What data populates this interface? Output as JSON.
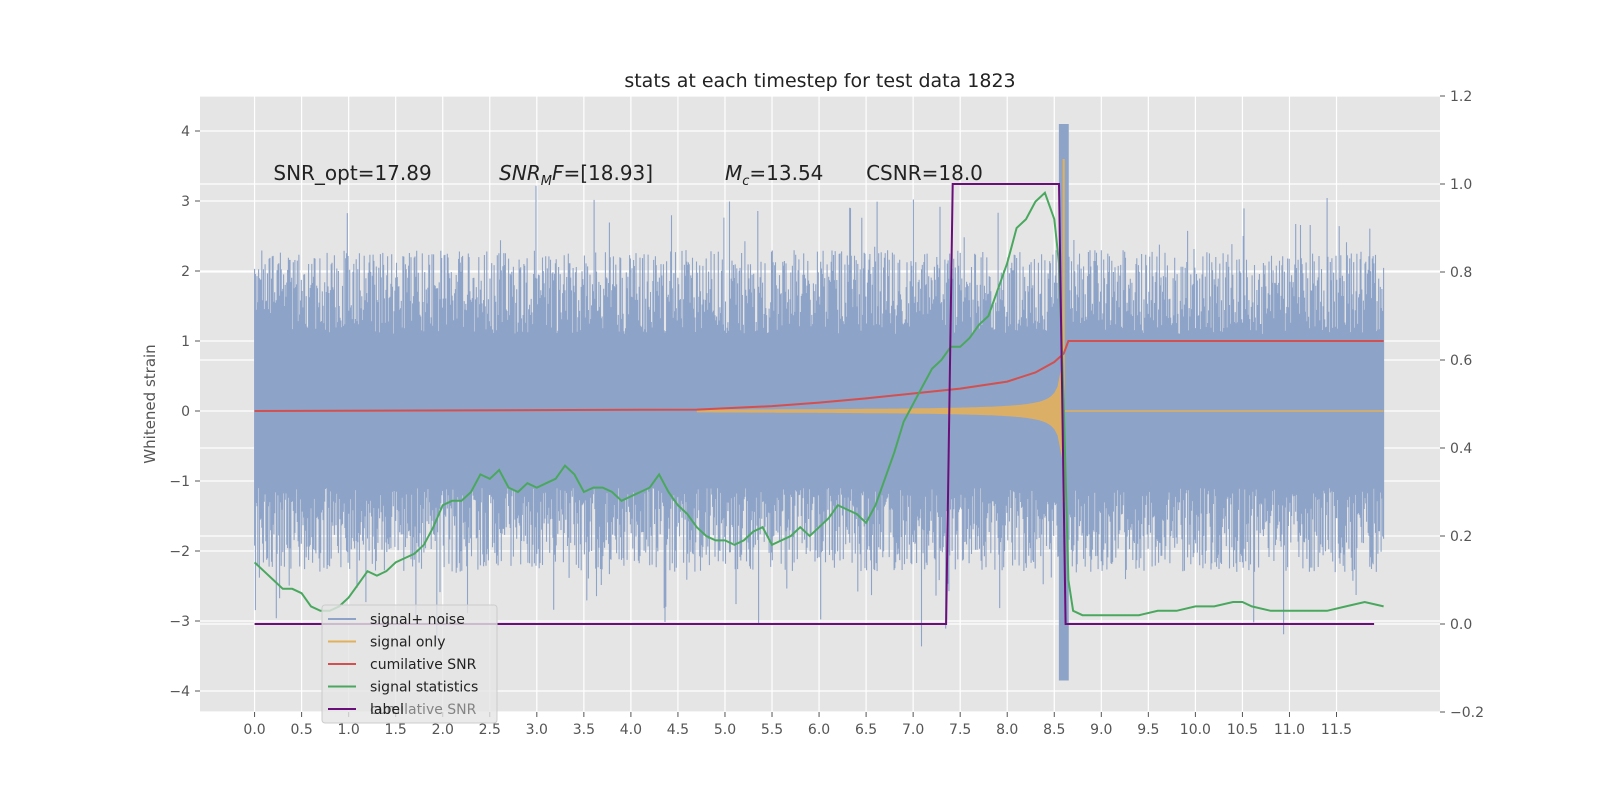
{
  "chart_data": {
    "type": "line",
    "title": "stats at each timestep for test data 1823",
    "ylabel": "Whitened strain",
    "xlabel": "",
    "xlim": [
      -0.58,
      12.6
    ],
    "ylim": [
      -4.3,
      4.5
    ],
    "y2lim": [
      -0.2,
      1.2
    ],
    "x_ticks": [
      "0.0",
      "0.5",
      "1.0",
      "1.5",
      "2.0",
      "2.5",
      "3.0",
      "3.5",
      "4.0",
      "4.5",
      "5.0",
      "5.5",
      "6.0",
      "6.5",
      "7.0",
      "7.5",
      "8.0",
      "8.5",
      "9.0",
      "9.5",
      "10.0",
      "10.5",
      "11.0",
      "11.5"
    ],
    "y_ticks": [
      4,
      3,
      2,
      1,
      0,
      -1,
      -2,
      -3,
      -4
    ],
    "y2_ticks": [
      1.2,
      1.0,
      0.8,
      0.6,
      0.4,
      0.2,
      0.0,
      -0.2
    ],
    "grid": true,
    "legend_position": "lower-left",
    "annotations": [
      {
        "text": "SNR_opt=17.89",
        "x": 0.2,
        "y": 3.3
      },
      {
        "text": "SNR_MF=[18.93]",
        "x": 2.6,
        "y": 3.3,
        "base": "SNR",
        "sub": "M",
        "tail": "F=[18.93]"
      },
      {
        "text": "M_c=13.54",
        "x": 5.0,
        "y": 3.3,
        "base": "M",
        "sub": "c",
        "tail": "=13.54"
      },
      {
        "text": "CSNR=18.0",
        "x": 6.5,
        "y": 3.3
      }
    ],
    "series": [
      {
        "name": "signal+ noise",
        "color": "#8ea3c8",
        "description_values": "noise band",
        "x_range": [
          0.0,
          12.0
        ],
        "band_typical": [
          -1.8,
          1.8
        ],
        "peaks_max": 4.1,
        "peaks_min": -3.85
      },
      {
        "name": "signal only",
        "color": "#e3b05a",
        "chirp_start": 4.7,
        "chirp_peak_time": 8.6,
        "chirp_peak_amp": 3.6
      },
      {
        "name": "cumilative SNR",
        "color": "#d2504f",
        "axis": "left",
        "x": [
          0.0,
          4.7,
          5.5,
          6.0,
          6.5,
          7.0,
          7.5,
          8.0,
          8.3,
          8.5,
          8.6,
          8.65,
          12.0
        ],
        "y": [
          0.0,
          0.02,
          0.07,
          0.12,
          0.18,
          0.25,
          0.32,
          0.42,
          0.55,
          0.7,
          0.82,
          1.0,
          1.0
        ]
      },
      {
        "name": "signal statistics",
        "color": "#4aa85e",
        "axis": "right",
        "x": [
          0.0,
          0.1,
          0.2,
          0.3,
          0.4,
          0.5,
          0.6,
          0.7,
          0.8,
          0.9,
          1.0,
          1.1,
          1.2,
          1.3,
          1.4,
          1.5,
          1.6,
          1.7,
          1.8,
          1.9,
          2.0,
          2.1,
          2.2,
          2.3,
          2.4,
          2.5,
          2.6,
          2.7,
          2.8,
          2.9,
          3.0,
          3.1,
          3.2,
          3.3,
          3.4,
          3.5,
          3.6,
          3.7,
          3.8,
          3.9,
          4.0,
          4.1,
          4.2,
          4.3,
          4.4,
          4.5,
          4.6,
          4.7,
          4.8,
          4.9,
          5.0,
          5.1,
          5.2,
          5.3,
          5.4,
          5.5,
          5.6,
          5.7,
          5.8,
          5.9,
          6.0,
          6.1,
          6.2,
          6.3,
          6.4,
          6.5,
          6.6,
          6.7,
          6.8,
          6.9,
          7.0,
          7.1,
          7.2,
          7.3,
          7.4,
          7.5,
          7.6,
          7.7,
          7.8,
          7.9,
          8.0,
          8.1,
          8.2,
          8.3,
          8.4,
          8.5,
          8.55,
          8.6,
          8.65,
          8.7,
          8.8,
          9.0,
          9.2,
          9.4,
          9.6,
          9.8,
          10.0,
          10.2,
          10.4,
          10.5,
          10.6,
          10.8,
          11.0,
          11.2,
          11.4,
          11.6,
          11.8,
          12.0
        ],
        "y": [
          0.14,
          0.12,
          0.1,
          0.08,
          0.08,
          0.07,
          0.04,
          0.03,
          0.03,
          0.04,
          0.06,
          0.09,
          0.12,
          0.11,
          0.12,
          0.14,
          0.15,
          0.16,
          0.18,
          0.22,
          0.27,
          0.28,
          0.28,
          0.3,
          0.34,
          0.33,
          0.35,
          0.31,
          0.3,
          0.32,
          0.31,
          0.32,
          0.33,
          0.36,
          0.34,
          0.3,
          0.31,
          0.31,
          0.3,
          0.28,
          0.29,
          0.3,
          0.31,
          0.34,
          0.3,
          0.27,
          0.25,
          0.22,
          0.2,
          0.19,
          0.19,
          0.18,
          0.19,
          0.21,
          0.22,
          0.18,
          0.19,
          0.2,
          0.22,
          0.2,
          0.22,
          0.24,
          0.27,
          0.26,
          0.25,
          0.23,
          0.27,
          0.33,
          0.39,
          0.46,
          0.5,
          0.54,
          0.58,
          0.6,
          0.63,
          0.63,
          0.65,
          0.68,
          0.7,
          0.76,
          0.82,
          0.9,
          0.92,
          0.96,
          0.98,
          0.92,
          0.82,
          0.5,
          0.1,
          0.03,
          0.02,
          0.02,
          0.02,
          0.02,
          0.03,
          0.03,
          0.04,
          0.04,
          0.05,
          0.05,
          0.04,
          0.03,
          0.03,
          0.03,
          0.03,
          0.04,
          0.05,
          0.04
        ]
      },
      {
        "name": "label",
        "color": "#6a0f7a",
        "axis": "right",
        "x": [
          0.0,
          7.35,
          7.42,
          8.55,
          8.62,
          11.9
        ],
        "y": [
          0.0,
          0.0,
          1.0,
          1.0,
          0.0,
          0.0
        ]
      }
    ],
    "legend_items": [
      "signal+ noise",
      "signal only",
      "cumilative SNR",
      "signal statistics",
      "label"
    ],
    "legend_ghost": "cumilative SNR"
  }
}
